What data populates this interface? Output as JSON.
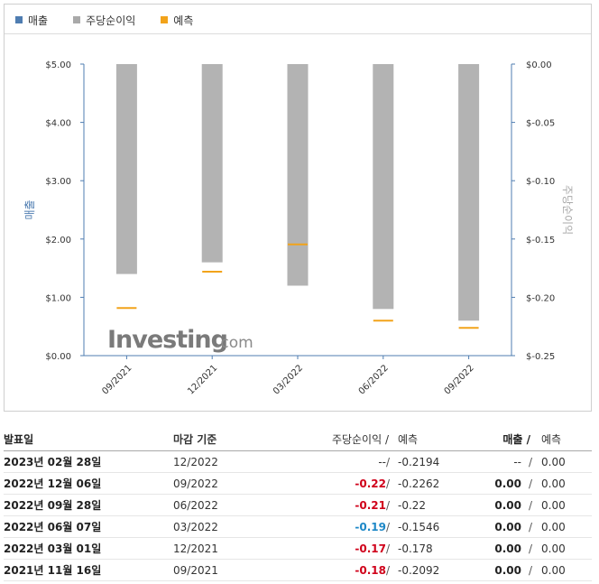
{
  "legend": {
    "revenue": {
      "label": "매출",
      "color": "#4f7db1"
    },
    "eps": {
      "label": "주당순이익",
      "color": "#a9a9a9"
    },
    "forecast": {
      "label": "예측",
      "color": "#f2a31a"
    }
  },
  "watermark": {
    "bold": "Investing",
    "suffix": ".com"
  },
  "chart_data": {
    "type": "bar",
    "categories": [
      "09/2021",
      "12/2021",
      "03/2022",
      "06/2022",
      "09/2022"
    ],
    "left_axis": {
      "label": "매출",
      "ylim": [
        0,
        5
      ],
      "ticks": [
        0,
        1,
        2,
        3,
        4,
        5
      ],
      "tick_labels": [
        "$0.00",
        "$1.00",
        "$2.00",
        "$3.00",
        "$4.00",
        "$5.00"
      ],
      "color": "#4f7db1"
    },
    "right_axis": {
      "label": "주당순이익",
      "ylim": [
        -0.25,
        0
      ],
      "ticks": [
        -0.25,
        -0.2,
        -0.15,
        -0.1,
        -0.05,
        0
      ],
      "tick_labels": [
        "$-0.25",
        "$-0.20",
        "$-0.15",
        "$-0.10",
        "$-0.05",
        "$0.00"
      ],
      "color": "#a9a9a9"
    },
    "series": [
      {
        "name": "주당순이익",
        "axis": "right",
        "kind": "bar",
        "color": "#b3b3b3",
        "values": [
          -0.18,
          -0.17,
          -0.19,
          -0.21,
          -0.22
        ]
      },
      {
        "name": "예측",
        "axis": "right",
        "kind": "marker",
        "color": "#f2a31a",
        "values": [
          -0.2092,
          -0.178,
          -0.1546,
          -0.22,
          -0.2262
        ]
      },
      {
        "name": "매출",
        "axis": "left",
        "kind": "bar",
        "color": "#4f7db1",
        "values": [
          0,
          0,
          0,
          0,
          0
        ]
      }
    ],
    "grid": false,
    "legend_position": "top-left"
  },
  "table": {
    "headers": {
      "date": "발표일",
      "period": "마감 기준",
      "eps": "주당순이익 /",
      "eps_forecast": "예측",
      "revenue": "매출 /",
      "revenue_forecast": "예측"
    },
    "rows": [
      {
        "date": "2023년 02월 28일",
        "period": "12/2022",
        "eps": "--",
        "eps_class": "flat",
        "sep1": "/",
        "eps_forecast": "-0.2194",
        "revenue": "--",
        "sep2": "/",
        "revenue_forecast": "0.00"
      },
      {
        "date": "2022년 12월 06일",
        "period": "09/2022",
        "eps": "-0.22",
        "eps_class": "neg",
        "sep1": "/",
        "eps_forecast": "-0.2262",
        "revenue": "0.00",
        "sep2": "/",
        "revenue_forecast": "0.00"
      },
      {
        "date": "2022년 09월 28일",
        "period": "06/2022",
        "eps": "-0.21",
        "eps_class": "neg",
        "sep1": "/",
        "eps_forecast": "-0.22",
        "revenue": "0.00",
        "sep2": "/",
        "revenue_forecast": "0.00"
      },
      {
        "date": "2022년 06월 07일",
        "period": "03/2022",
        "eps": "-0.19",
        "eps_class": "pos",
        "sep1": "/",
        "eps_forecast": "-0.1546",
        "revenue": "0.00",
        "sep2": "/",
        "revenue_forecast": "0.00"
      },
      {
        "date": "2022년 03월 01일",
        "period": "12/2021",
        "eps": "-0.17",
        "eps_class": "neg",
        "sep1": "/",
        "eps_forecast": "-0.178",
        "revenue": "0.00",
        "sep2": "/",
        "revenue_forecast": "0.00"
      },
      {
        "date": "2021년 11월 16일",
        "period": "09/2021",
        "eps": "-0.18",
        "eps_class": "neg",
        "sep1": "/",
        "eps_forecast": "-0.2092",
        "revenue": "0.00",
        "sep2": "/",
        "revenue_forecast": "0.00"
      }
    ]
  }
}
